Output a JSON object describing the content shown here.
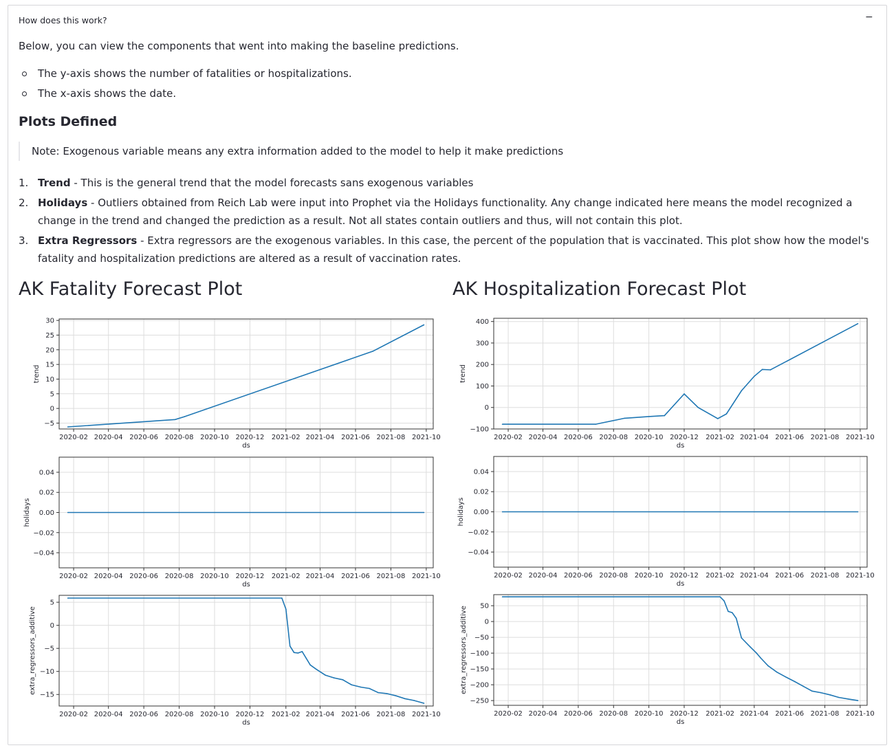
{
  "expander": {
    "title": "How does this work?",
    "toggle": "−"
  },
  "intro": "Below, you can view the components that went into making the baseline predictions.",
  "bullets": [
    "The y-axis shows the number of fatalities or hospitalizations.",
    "The x-axis shows the date."
  ],
  "plots_heading": "Plots Defined",
  "note": "Note: Exogenous variable means any extra information added to the model to help it make predictions",
  "definitions": [
    {
      "num": "1.",
      "term": "Trend",
      "text": " - This is the general trend that the model forecasts sans exogenous variables"
    },
    {
      "num": "2.",
      "term": "Holidays",
      "text": " - Outliers obtained from Reich Lab were input into Prophet via the Holidays functionality. Any change indicated here means the model recognized a change in the trend and changed the prediction as a result. Not all states contain outliers and thus, will not contain this plot."
    },
    {
      "num": "3.",
      "term": "Extra Regressors",
      "text": " - Extra regressors are the exogenous variables. In this case, the percent of the population that is vaccinated. This plot show how the model's fatality and hospitalization predictions are altered as a result of vaccination rates."
    }
  ],
  "fatality_title": "AK Fatality Forecast Plot",
  "hospitalization_title": "AK Hospitalization Forecast Plot",
  "colors": {
    "line": "#1f77b4",
    "grid": "#dddddd",
    "text": "#262730"
  },
  "chart_data": [
    {
      "type": "line",
      "panel": "fatality-trend",
      "xlabel": "ds",
      "ylabel": "trend",
      "xticks": [
        "2020-02",
        "2020-04",
        "2020-06",
        "2020-08",
        "2020-10",
        "2020-12",
        "2021-02",
        "2021-04",
        "2021-06",
        "2021-08",
        "2021-10"
      ],
      "yticks": [
        -5,
        0,
        5,
        10,
        15,
        20,
        25,
        30
      ],
      "ylim": [
        -7,
        30.5
      ],
      "x": [
        "2020-01-22",
        "2020-07-25",
        "2020-08-10",
        "2021-07-01",
        "2021-09-27"
      ],
      "y": [
        -6.3,
        -3.8,
        -2.8,
        19.5,
        28.5
      ]
    },
    {
      "type": "line",
      "panel": "fatality-holidays",
      "xlabel": "ds",
      "ylabel": "holidays",
      "xticks": [
        "2020-02",
        "2020-04",
        "2020-06",
        "2020-08",
        "2020-10",
        "2020-12",
        "2021-02",
        "2021-04",
        "2021-06",
        "2021-08",
        "2021-10"
      ],
      "yticks": [
        "0.04",
        "0.02",
        "0.00",
        "−0.02",
        "−0.04"
      ],
      "ylim": [
        -0.055,
        0.055
      ],
      "x": [
        "2020-01-22",
        "2021-09-27"
      ],
      "y": [
        0,
        0
      ]
    },
    {
      "type": "line",
      "panel": "fatality-extra-regressors",
      "xlabel": "ds",
      "ylabel": "extra_regressors_additive",
      "xticks": [
        "2020-02",
        "2020-04",
        "2020-06",
        "2020-08",
        "2020-10",
        "2020-12",
        "2021-02",
        "2021-04",
        "2021-06",
        "2021-08",
        "2021-10"
      ],
      "yticks": [
        5,
        0,
        -5,
        -10,
        -15
      ],
      "ylim": [
        -17.5,
        6.5
      ],
      "x": [
        "2020-01-22",
        "2021-01-25",
        "2021-02-01",
        "2021-02-08",
        "2021-02-15",
        "2021-02-22",
        "2021-03-01",
        "2021-03-15",
        "2021-03-25",
        "2021-04-10",
        "2021-04-25",
        "2021-05-10",
        "2021-05-25",
        "2021-06-10",
        "2021-06-25",
        "2021-07-10",
        "2021-07-25",
        "2021-08-10",
        "2021-08-25",
        "2021-09-10",
        "2021-09-27"
      ],
      "y": [
        5.9,
        5.9,
        3.5,
        -4.5,
        -5.9,
        -6.0,
        -5.7,
        -8.6,
        -9.5,
        -10.8,
        -11.4,
        -11.8,
        -12.9,
        -13.4,
        -13.7,
        -14.6,
        -14.8,
        -15.3,
        -15.9,
        -16.3,
        -16.9
      ]
    },
    {
      "type": "line",
      "panel": "hospitalization-trend",
      "xlabel": "ds",
      "ylabel": "trend",
      "xticks": [
        "2020-02",
        "2020-04",
        "2020-06",
        "2020-08",
        "2020-10",
        "2020-12",
        "2021-02",
        "2021-04",
        "2021-06",
        "2021-08",
        "2021-10"
      ],
      "yticks": [
        400,
        300,
        200,
        100,
        0,
        -100
      ],
      "ylim": [
        -100,
        415
      ],
      "x": [
        "2020-01-22",
        "2020-07-01",
        "2020-08-20",
        "2020-10-01",
        "2020-10-28",
        "2020-12-01",
        "2020-12-25",
        "2021-01-28",
        "2021-02-12",
        "2021-03-10",
        "2021-04-01",
        "2021-04-15",
        "2021-04-29",
        "2021-09-27"
      ],
      "y": [
        -78,
        -78,
        -50,
        -42,
        -38,
        63,
        0,
        -52,
        -30,
        78,
        145,
        177,
        175,
        390
      ]
    },
    {
      "type": "line",
      "panel": "hospitalization-holidays",
      "xlabel": "ds",
      "ylabel": "holidays",
      "xticks": [
        "2020-02",
        "2020-04",
        "2020-06",
        "2020-08",
        "2020-10",
        "2020-12",
        "2021-02",
        "2021-04",
        "2021-06",
        "2021-08",
        "2021-10"
      ],
      "yticks": [
        "0.04",
        "0.02",
        "0.00",
        "−0.02",
        "−0.04"
      ],
      "ylim": [
        -0.055,
        0.055
      ],
      "x": [
        "2020-01-22",
        "2021-09-27"
      ],
      "y": [
        0,
        0
      ]
    },
    {
      "type": "line",
      "panel": "hospitalization-extra-regressors",
      "xlabel": "ds",
      "ylabel": "extra_regressors_additive",
      "xticks": [
        "2020-02",
        "2020-04",
        "2020-06",
        "2020-08",
        "2020-10",
        "2020-12",
        "2021-02",
        "2021-04",
        "2021-06",
        "2021-08",
        "2021-10"
      ],
      "yticks": [
        50,
        0,
        -50,
        -100,
        -150,
        -200,
        -250
      ],
      "ylim": [
        -265,
        85
      ],
      "x": [
        "2020-01-22",
        "2021-01-25",
        "2021-02-01",
        "2021-02-08",
        "2021-02-15",
        "2021-02-22",
        "2021-03-01",
        "2021-03-10",
        "2021-03-25",
        "2021-04-05",
        "2021-04-12",
        "2021-04-25",
        "2021-05-10",
        "2021-05-25",
        "2021-06-10",
        "2021-06-25",
        "2021-07-10",
        "2021-07-25",
        "2021-08-10",
        "2021-08-25",
        "2021-09-10",
        "2021-09-27"
      ],
      "y": [
        78,
        78,
        78,
        65,
        32,
        28,
        10,
        -52,
        -80,
        -100,
        -115,
        -140,
        -160,
        -175,
        -190,
        -205,
        -220,
        -225,
        -232,
        -240,
        -245,
        -250
      ]
    }
  ]
}
